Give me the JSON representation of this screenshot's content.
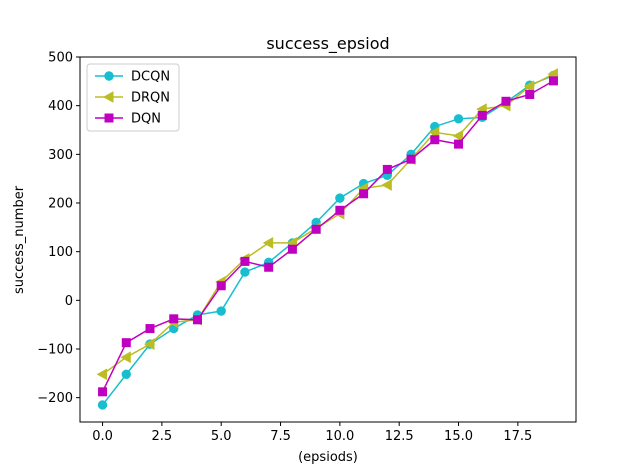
{
  "chart_data": {
    "type": "line",
    "title": "success_epsiod",
    "xlabel": "(epsiods)",
    "ylabel": "success_number",
    "xlim": [
      -0.95,
      19.95
    ],
    "ylim": [
      -250,
      500
    ],
    "xticks": [
      0.0,
      2.5,
      5.0,
      7.5,
      10.0,
      12.5,
      15.0,
      17.5
    ],
    "xtick_labels": [
      "0.0",
      "2.5",
      "5.0",
      "7.5",
      "10.0",
      "12.5",
      "15.0",
      "17.5"
    ],
    "yticks": [
      -200,
      -100,
      0,
      100,
      200,
      300,
      400,
      500
    ],
    "ytick_labels": [
      "−200",
      "−100",
      "0",
      "100",
      "200",
      "300",
      "400",
      "500"
    ],
    "grid": false,
    "legend": "top-left",
    "x": [
      0,
      1,
      2,
      3,
      4,
      5,
      6,
      7,
      8,
      9,
      10,
      11,
      12,
      13,
      14,
      15,
      16,
      17,
      18,
      19
    ],
    "series": [
      {
        "name": "DCQN",
        "color": "#17becf",
        "marker": "circle",
        "values": [
          -215,
          -152,
          -90,
          -58,
          -30,
          -22,
          58,
          78,
          118,
          160,
          210,
          240,
          257,
          300,
          357,
          373,
          376,
          407,
          442,
          462
        ]
      },
      {
        "name": "DRQN",
        "color": "#bcbd22",
        "marker": "triangle-left",
        "values": [
          -152,
          -117,
          -90,
          -45,
          -40,
          38,
          85,
          118,
          118,
          148,
          178,
          230,
          237,
          290,
          345,
          338,
          393,
          400,
          440,
          465
        ]
      },
      {
        "name": "DQN",
        "color": "#c000c0",
        "marker": "square",
        "values": [
          -188,
          -87,
          -58,
          -38,
          -40,
          30,
          80,
          68,
          105,
          146,
          185,
          219,
          269,
          290,
          330,
          321,
          380,
          409,
          423,
          451
        ]
      }
    ]
  }
}
